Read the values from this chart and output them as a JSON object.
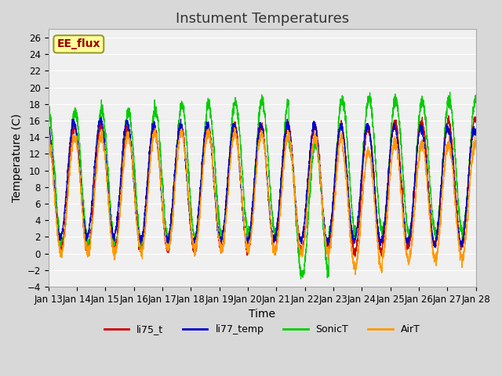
{
  "title": "Instument Temperatures",
  "xlabel": "Time",
  "ylabel": "Temperature (C)",
  "ylim": [
    -4,
    27
  ],
  "yticks": [
    -4,
    -2,
    0,
    2,
    4,
    6,
    8,
    10,
    12,
    14,
    16,
    18,
    20,
    22,
    24,
    26
  ],
  "x_tick_labels": [
    "Jan 13",
    "Jan 14",
    "Jan 15",
    "Jan 16",
    "Jan 17",
    "Jan 18",
    "Jan 19",
    "Jan 20",
    "Jan 21",
    "Jan 22",
    "Jan 23",
    "Jan 24",
    "Jan 25",
    "Jan 26",
    "Jan 27",
    "Jan 28"
  ],
  "colors": {
    "li75_t": "#cc0000",
    "li77_temp": "#0000cc",
    "SonicT": "#00cc00",
    "AirT": "#ff9900"
  },
  "legend_label": "EE_flux",
  "legend_box_color": "#ffff99",
  "legend_box_edge": "#999933",
  "legend_text_color": "#990000",
  "plot_bg_color": "#f0f0f0",
  "grid_color": "#ffffff",
  "title_fontsize": 13,
  "axis_fontsize": 10,
  "tick_fontsize": 8.5,
  "n_points": 3600
}
